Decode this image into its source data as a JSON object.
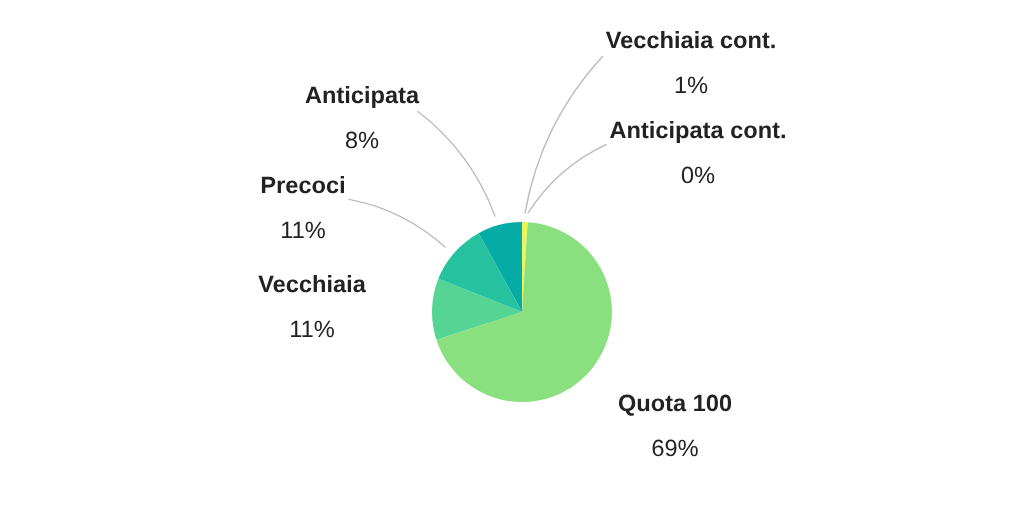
{
  "chart_data": {
    "type": "pie",
    "categories": [
      "Vecchiaia cont.",
      "Quota 100",
      "Vecchiaia",
      "Precoci",
      "Anticipata",
      "Anticipata cont."
    ],
    "values": [
      1,
      69,
      11,
      11,
      8,
      0
    ],
    "value_labels": [
      "1%",
      "69%",
      "11%",
      "11%",
      "8%",
      "0%"
    ],
    "colors": [
      "#eef55a",
      "#8ae07e",
      "#55d494",
      "#26c2a0",
      "#05aca6",
      "#0a8f8f"
    ],
    "legend": false
  }
}
